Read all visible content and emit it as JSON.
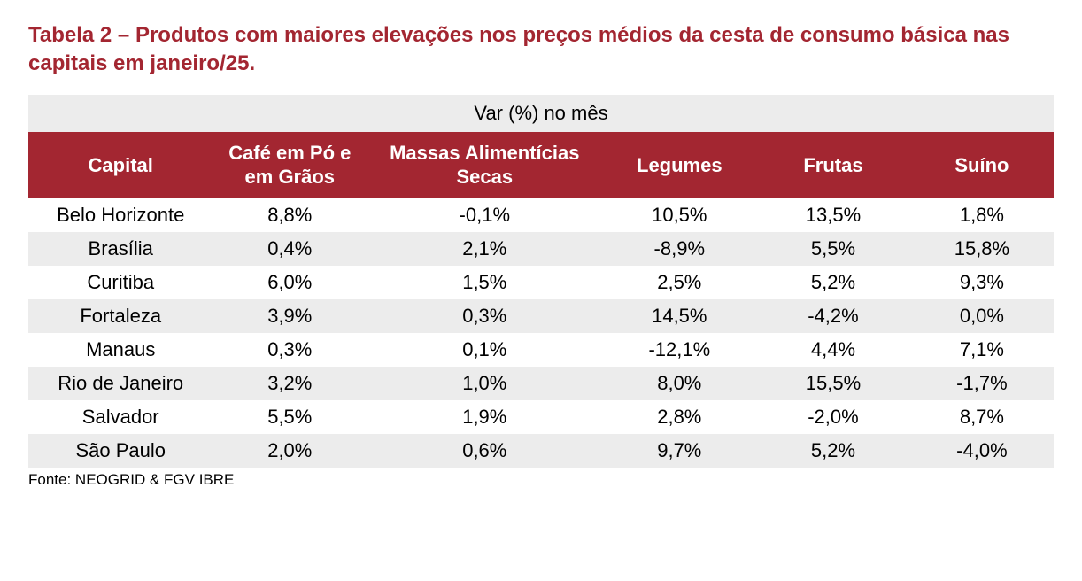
{
  "title": "Tabela 2 – Produtos com maiores elevações nos preços médios da cesta de consumo básica nas capitais em janeiro/25.",
  "table": {
    "superheader": "Var (%) no mês",
    "columns": [
      "Capital",
      "Café em Pó e em Grãos",
      "Massas Alimentícias Secas",
      "Legumes",
      "Frutas",
      "Suíno"
    ],
    "column_widths_pct": [
      18,
      15,
      23,
      15,
      15,
      14
    ],
    "header_bg": "#a32631",
    "header_fg": "#ffffff",
    "superheader_bg": "#ececec",
    "row_stripe_bg": "#ececec",
    "row_bg": "#ffffff",
    "font_size_pt": 16,
    "title_color": "#a32631",
    "title_fontsize_pt": 18,
    "rows": [
      {
        "capital": "Belo Horizonte",
        "v": [
          "8,8%",
          "-0,1%",
          "10,5%",
          "13,5%",
          "1,8%"
        ]
      },
      {
        "capital": "Brasília",
        "v": [
          "0,4%",
          "2,1%",
          "-8,9%",
          "5,5%",
          "15,8%"
        ]
      },
      {
        "capital": "Curitiba",
        "v": [
          "6,0%",
          "1,5%",
          "2,5%",
          "5,2%",
          "9,3%"
        ]
      },
      {
        "capital": "Fortaleza",
        "v": [
          "3,9%",
          "0,3%",
          "14,5%",
          "-4,2%",
          "0,0%"
        ]
      },
      {
        "capital": "Manaus",
        "v": [
          "0,3%",
          "0,1%",
          "-12,1%",
          "4,4%",
          "7,1%"
        ]
      },
      {
        "capital": "Rio de Janeiro",
        "v": [
          "3,2%",
          "1,0%",
          "8,0%",
          "15,5%",
          "-1,7%"
        ]
      },
      {
        "capital": "Salvador",
        "v": [
          "5,5%",
          "1,9%",
          "2,8%",
          "-2,0%",
          "8,7%"
        ]
      },
      {
        "capital": "São Paulo",
        "v": [
          "2,0%",
          "0,6%",
          "9,7%",
          "5,2%",
          "-4,0%"
        ]
      }
    ]
  },
  "source": "Fonte: NEOGRID & FGV IBRE"
}
